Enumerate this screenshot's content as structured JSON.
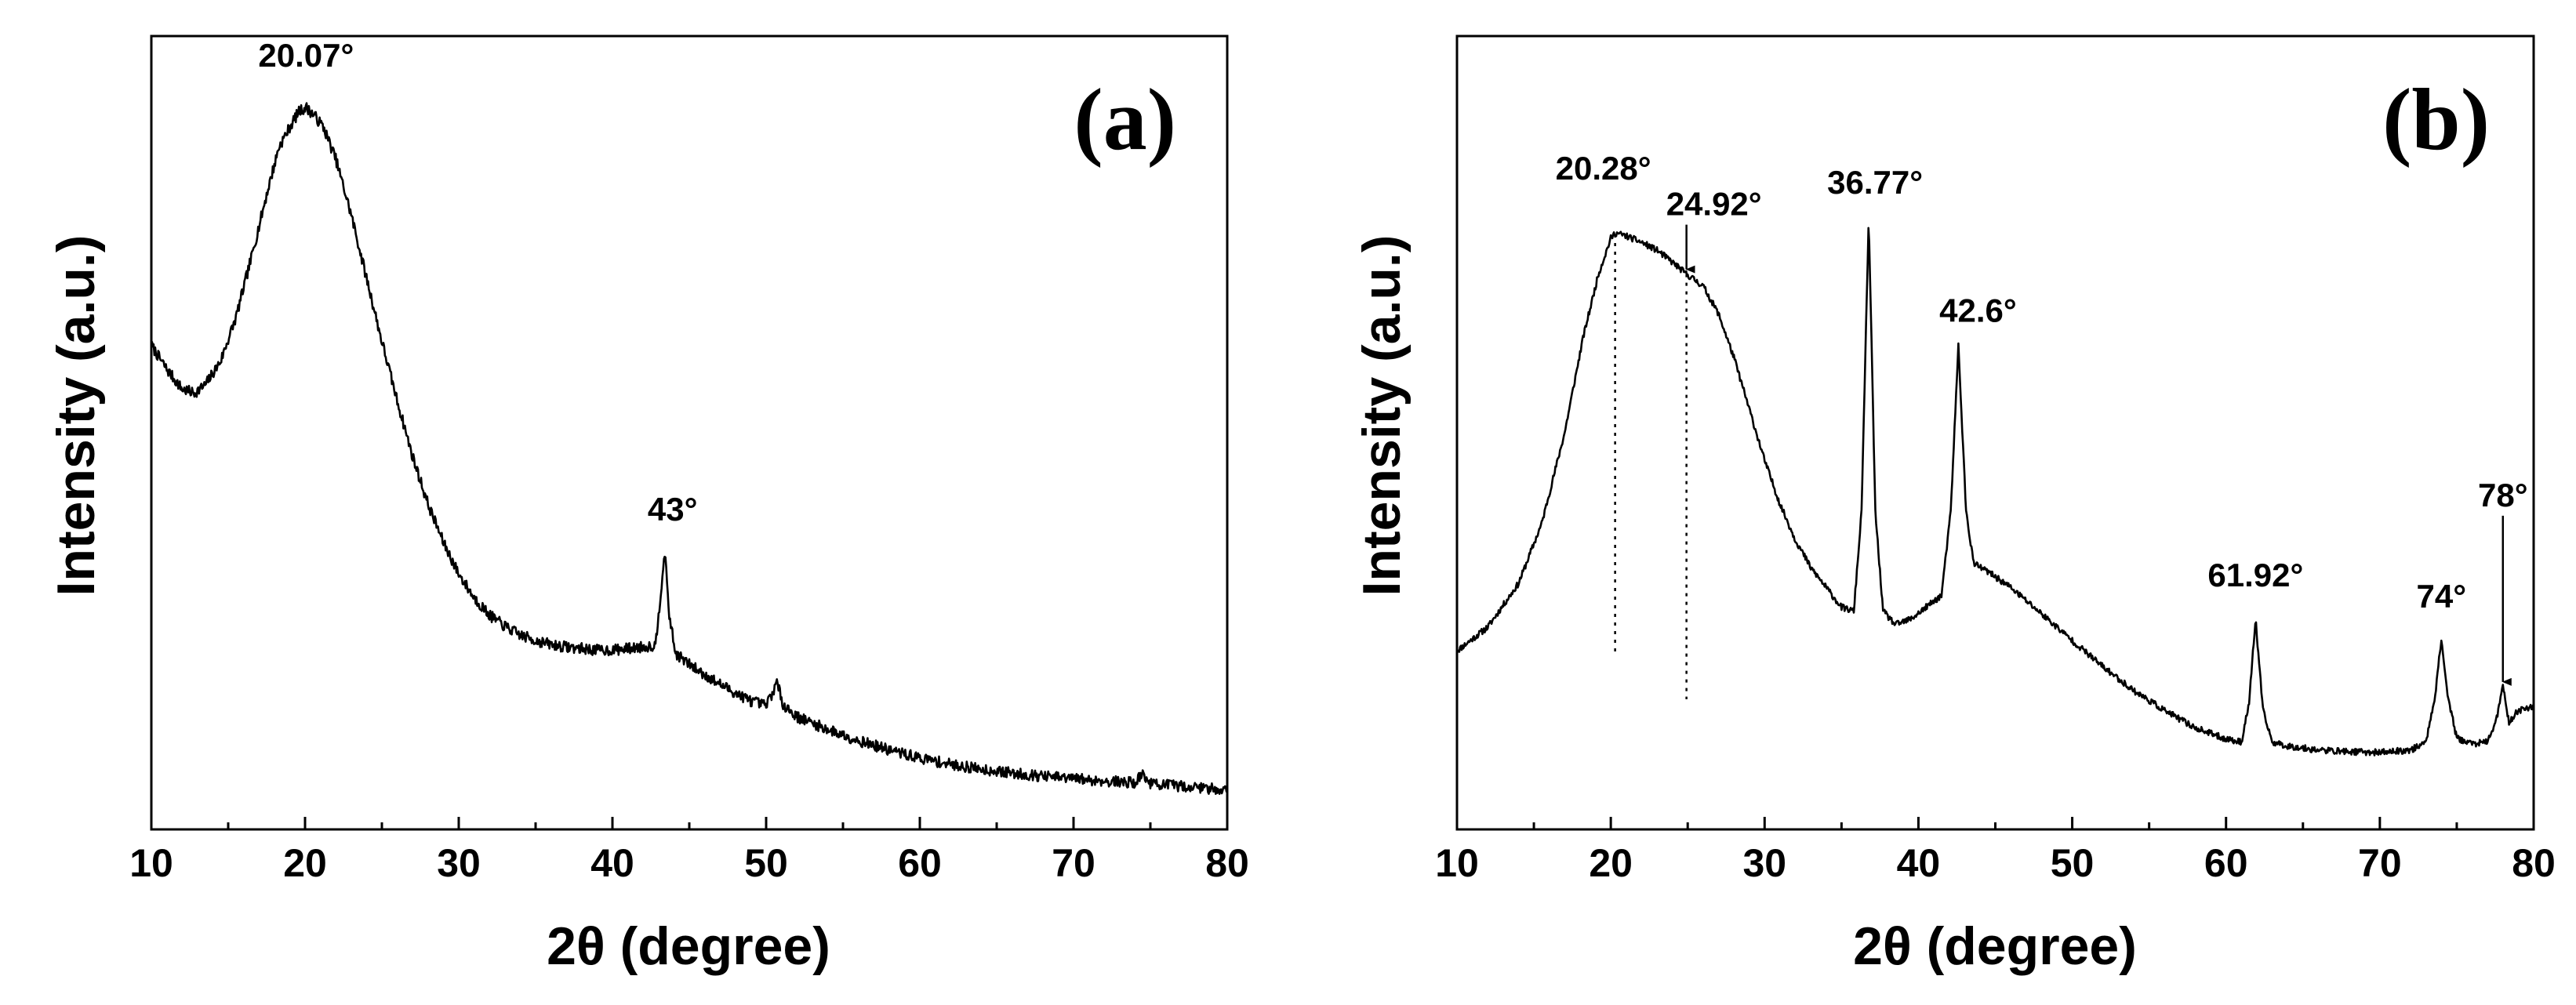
{
  "chart_data": [
    {
      "type": "line",
      "panel_label": "(a)",
      "xlabel": "2θ (degree)",
      "ylabel": "Intensity (a.u.)",
      "xlim": [
        10,
        80
      ],
      "ylim": [
        0,
        1
      ],
      "xticks": [
        10,
        20,
        30,
        40,
        50,
        60,
        70,
        80
      ],
      "minor_step": 5,
      "yticks_visible": false,
      "grid": false,
      "noise": 0.007,
      "seed": 7,
      "x": [
        10,
        11,
        12,
        12.8,
        13.5,
        14.5,
        15.5,
        16.5,
        17.5,
        18.3,
        19,
        19.6,
        20.07,
        20.6,
        21.2,
        22,
        23,
        24,
        25,
        26,
        27,
        28,
        29,
        30,
        31,
        32,
        33,
        34,
        35,
        36,
        37,
        38,
        39,
        40,
        41,
        42,
        42.8,
        43.1,
        43.4,
        43.7,
        44.1,
        45,
        46,
        47,
        48,
        49,
        50,
        50.4,
        50.7,
        51.1,
        52,
        53,
        54,
        55,
        56,
        57,
        58,
        59,
        60,
        62,
        64,
        66,
        68,
        70,
        72,
        74,
        74.5,
        75,
        76,
        78,
        80
      ],
      "y": [
        0.61,
        0.58,
        0.555,
        0.55,
        0.56,
        0.59,
        0.645,
        0.72,
        0.8,
        0.86,
        0.885,
        0.905,
        0.91,
        0.9,
        0.885,
        0.845,
        0.775,
        0.695,
        0.615,
        0.54,
        0.47,
        0.41,
        0.362,
        0.322,
        0.292,
        0.27,
        0.256,
        0.245,
        0.238,
        0.233,
        0.23,
        0.228,
        0.226,
        0.226,
        0.228,
        0.23,
        0.232,
        0.29,
        0.35,
        0.27,
        0.222,
        0.208,
        0.195,
        0.183,
        0.172,
        0.162,
        0.156,
        0.172,
        0.185,
        0.158,
        0.142,
        0.134,
        0.126,
        0.119,
        0.112,
        0.106,
        0.1,
        0.095,
        0.09,
        0.082,
        0.076,
        0.071,
        0.067,
        0.064,
        0.061,
        0.059,
        0.07,
        0.058,
        0.056,
        0.053,
        0.05
      ],
      "annotations": [
        {
          "text": "20.07°",
          "x": 20.07,
          "y": 0.91
        },
        {
          "text": "43°",
          "x": 43.4,
          "y": 0.35
        }
      ]
    },
    {
      "type": "line",
      "panel_label": "(b)",
      "xlabel": "2θ (degree)",
      "ylabel": "Intensity (a.u.)",
      "xlim": [
        10,
        80
      ],
      "ylim": [
        0,
        1
      ],
      "xticks": [
        10,
        20,
        30,
        40,
        50,
        60,
        70,
        80
      ],
      "minor_step": 5,
      "yticks_visible": false,
      "grid": false,
      "noise": 0.004,
      "seed": 11,
      "x": [
        10,
        12,
        14,
        15.5,
        17,
        18.2,
        19.2,
        20,
        20.28,
        21,
        22,
        23,
        24,
        24.92,
        26,
        27,
        28,
        29,
        30,
        31,
        32,
        33,
        34,
        35,
        35.8,
        36.3,
        36.77,
        37.2,
        37.7,
        38.5,
        39.5,
        40.5,
        41.5,
        42.1,
        42.6,
        43.1,
        43.6,
        44.5,
        46,
        48,
        50,
        52,
        54,
        56,
        58,
        60,
        61,
        61.5,
        61.92,
        62.4,
        63,
        64,
        66,
        68,
        70,
        72,
        73,
        73.6,
        74,
        74.4,
        75,
        76,
        77,
        77.6,
        78,
        78.4,
        79,
        80
      ],
      "y": [
        0.225,
        0.255,
        0.31,
        0.385,
        0.5,
        0.62,
        0.7,
        0.745,
        0.752,
        0.748,
        0.74,
        0.73,
        0.715,
        0.7,
        0.685,
        0.65,
        0.595,
        0.53,
        0.465,
        0.41,
        0.365,
        0.33,
        0.305,
        0.28,
        0.275,
        0.4,
        0.77,
        0.4,
        0.275,
        0.258,
        0.265,
        0.28,
        0.295,
        0.4,
        0.61,
        0.4,
        0.335,
        0.325,
        0.305,
        0.272,
        0.238,
        0.205,
        0.175,
        0.15,
        0.128,
        0.114,
        0.11,
        0.16,
        0.265,
        0.15,
        0.11,
        0.105,
        0.1,
        0.098,
        0.097,
        0.1,
        0.11,
        0.17,
        0.24,
        0.17,
        0.115,
        0.108,
        0.11,
        0.14,
        0.18,
        0.135,
        0.15,
        0.155
      ],
      "annotations": [
        {
          "text": "20.28°",
          "x": 20.28,
          "y": 0.75,
          "guide": "dotted"
        },
        {
          "text": "24.92°",
          "x": 24.92,
          "y": 0.7,
          "guide": "dotted",
          "arrow": true
        },
        {
          "text": "36.77°",
          "x": 36.77,
          "y": 0.77
        },
        {
          "text": "42.6°",
          "x": 42.6,
          "y": 0.61
        },
        {
          "text": "61.92°",
          "x": 61.92,
          "y": 0.265
        },
        {
          "text": "74°",
          "x": 74,
          "y": 0.24
        },
        {
          "text": "78°",
          "x": 78,
          "y": 0.18,
          "arrow": true
        }
      ]
    }
  ]
}
